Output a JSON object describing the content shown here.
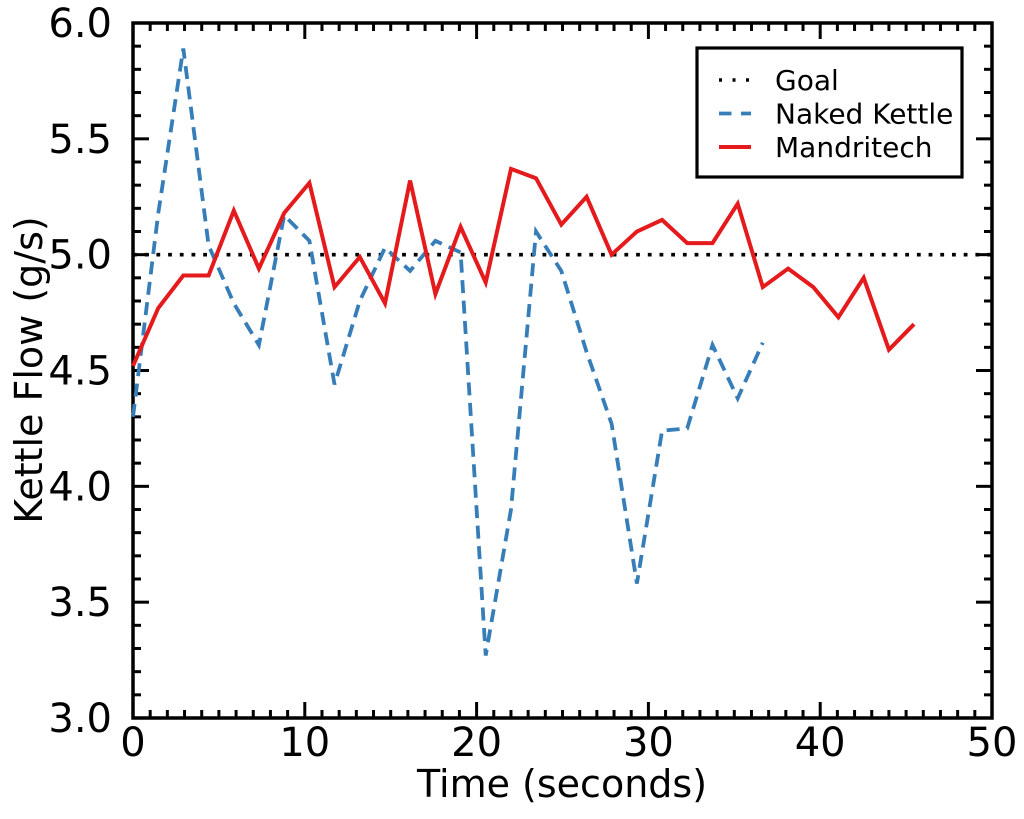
{
  "figure": {
    "background": "#ffffff",
    "axis_color": "#000000"
  },
  "chart_data": {
    "type": "line",
    "title": "",
    "xlabel": "Time (seconds)",
    "ylabel": "Kettle Flow (g/s)",
    "xlim": [
      0,
      50
    ],
    "ylim": [
      3.0,
      6.0
    ],
    "grid": false,
    "legend_position": "upper right",
    "x_major_ticks": [
      0,
      10,
      20,
      30,
      40,
      50
    ],
    "x_tick_labels": [
      "0",
      "10",
      "20",
      "30",
      "40",
      "50"
    ],
    "x_minor_step": 1,
    "y_major_ticks": [
      3.0,
      3.5,
      4.0,
      4.5,
      5.0,
      5.5,
      6.0
    ],
    "y_tick_labels": [
      "3.0",
      "3.5",
      "4.0",
      "4.5",
      "5.0",
      "5.5",
      "6.0"
    ],
    "y_minor_step": 0.1,
    "series": [
      {
        "name": "Goal",
        "style": "dotted",
        "color": "#000000",
        "x": [
          0,
          50
        ],
        "y": [
          5.0,
          5.0
        ]
      },
      {
        "name": "Naked Kettle",
        "style": "dashed",
        "color": "#377eb8",
        "x": [
          0,
          1.47,
          2.93,
          4.4,
          5.87,
          7.33,
          8.8,
          10.27,
          11.73,
          13.2,
          14.67,
          16.13,
          17.6,
          19.07,
          20.53,
          22.0,
          23.46,
          24.93,
          26.4,
          27.86,
          29.33,
          30.8,
          32.26,
          33.73,
          35.2,
          36.66
        ],
        "y": [
          4.3,
          5.18,
          5.89,
          5.04,
          4.79,
          4.61,
          5.17,
          5.06,
          4.44,
          4.8,
          5.03,
          4.93,
          5.06,
          5.01,
          3.27,
          3.9,
          5.1,
          4.93,
          4.58,
          4.27,
          3.58,
          4.24,
          4.25,
          4.61,
          4.38,
          4.62
        ]
      },
      {
        "name": "Mandritech",
        "style": "solid",
        "color": "#e41a1c",
        "x": [
          0,
          1.47,
          2.93,
          4.4,
          5.87,
          7.33,
          8.8,
          10.27,
          11.73,
          13.2,
          14.67,
          16.13,
          17.6,
          19.07,
          20.53,
          22.0,
          23.46,
          24.93,
          26.4,
          27.86,
          29.33,
          30.8,
          32.26,
          33.73,
          35.2,
          36.66,
          38.13,
          39.6,
          41.06,
          42.53,
          44.0,
          45.46
        ],
        "y": [
          4.52,
          4.77,
          4.91,
          4.91,
          5.19,
          4.94,
          5.18,
          5.31,
          4.86,
          4.99,
          4.79,
          5.32,
          4.83,
          5.12,
          4.88,
          5.37,
          5.33,
          5.13,
          5.25,
          5.0,
          5.1,
          5.15,
          5.05,
          5.05,
          5.22,
          4.86,
          4.94,
          4.86,
          4.73,
          4.9,
          4.59,
          4.7
        ]
      }
    ]
  }
}
